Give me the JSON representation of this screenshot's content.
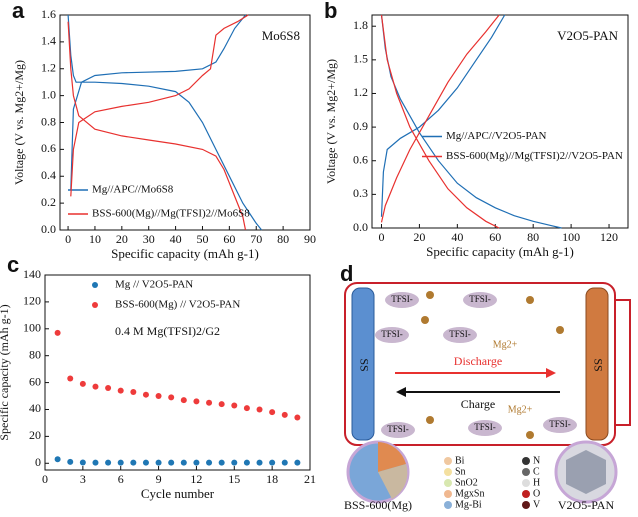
{
  "chart_data": [
    {
      "type": "line",
      "panel_label": "a",
      "title": "Mo6S8",
      "xlabel": "Specific capacity (mAh g-1)",
      "ylabel": "Voltage (V vs. Mg2+/Mg)",
      "xlim": [
        -3,
        90
      ],
      "ylim": [
        0,
        1.6
      ],
      "xticks": [
        0,
        10,
        20,
        30,
        40,
        50,
        60,
        70,
        80,
        90
      ],
      "yticks": [
        {
          "value": 0,
          "label": "0.0"
        },
        {
          "value": 0.2,
          "label": "0.2"
        },
        {
          "value": 0.4,
          "label": "0.4"
        },
        {
          "value": 0.6,
          "label": "0.6"
        },
        {
          "value": 0.8,
          "label": "0.8"
        },
        {
          "value": 1.0,
          "label": "1.0"
        },
        {
          "value": 1.2,
          "label": "1.2"
        },
        {
          "value": 1.4,
          "label": "1.4"
        },
        {
          "value": 1.6,
          "label": "1.6"
        }
      ],
      "legend": "lower left",
      "series": [
        {
          "name": "Mg//APC//Mo6S8",
          "color": "#1f6fb5",
          "x": [
            0,
            1,
            2,
            3,
            10,
            20,
            30,
            40,
            45,
            50,
            55,
            60,
            65,
            70,
            72,
            null,
            1,
            2,
            5,
            10,
            20,
            40,
            50,
            55,
            58,
            62,
            66
          ],
          "values": [
            1.6,
            1.3,
            1.15,
            1.1,
            1.1,
            1.09,
            1.07,
            1.03,
            0.95,
            0.8,
            0.6,
            0.4,
            0.2,
            0.05,
            0,
            null,
            0.3,
            0.9,
            1.1,
            1.15,
            1.17,
            1.18,
            1.2,
            1.25,
            1.35,
            1.5,
            1.6
          ]
        },
        {
          "name": "BSS-600(Mg)//Mg(TFSI)2//Mo6S8",
          "color": "#e8312f",
          "x": [
            0,
            1,
            2,
            4,
            10,
            20,
            30,
            40,
            50,
            55,
            58,
            62,
            65,
            66,
            null,
            1,
            2,
            4,
            10,
            20,
            30,
            40,
            45,
            50,
            53,
            55,
            58,
            63,
            67
          ],
          "values": [
            1.55,
            1.2,
            1.0,
            0.85,
            0.75,
            0.7,
            0.67,
            0.64,
            0.6,
            0.55,
            0.45,
            0.25,
            0.1,
            0,
            null,
            0.25,
            0.6,
            0.8,
            0.88,
            0.92,
            0.95,
            1.0,
            1.05,
            1.15,
            1.2,
            1.45,
            1.5,
            1.55,
            1.6
          ]
        }
      ]
    },
    {
      "type": "line",
      "panel_label": "b",
      "title": "V2O5-PAN",
      "xlabel": "Specific capacity (mAh g-1)",
      "ylabel": "Voltage (V vs. Mg2+/Mg)",
      "xlim": [
        -5,
        130
      ],
      "ylim": [
        0,
        1.9
      ],
      "xticks": [
        0,
        20,
        40,
        60,
        80,
        100,
        120
      ],
      "yticks": [
        {
          "value": 0,
          "label": "0.0"
        },
        {
          "value": 0.3,
          "label": "0.3"
        },
        {
          "value": 0.6,
          "label": "0.6"
        },
        {
          "value": 0.9,
          "label": "0.9"
        },
        {
          "value": 1.2,
          "label": "1.2"
        },
        {
          "value": 1.5,
          "label": "1.5"
        },
        {
          "value": 1.8,
          "label": "1.8"
        }
      ],
      "legend": "center right",
      "series": [
        {
          "name": "Mg//APC//V2O5-PAN",
          "color": "#1f6fb5",
          "x": [
            0,
            2,
            5,
            10,
            20,
            30,
            40,
            50,
            60,
            70,
            80,
            90,
            95,
            null,
            0,
            1,
            3,
            10,
            20,
            30,
            40,
            50,
            58,
            65
          ],
          "values": [
            1.9,
            1.6,
            1.35,
            1.15,
            0.85,
            0.6,
            0.4,
            0.27,
            0.18,
            0.11,
            0.06,
            0.02,
            0,
            null,
            0.1,
            0.5,
            0.7,
            0.8,
            0.9,
            1.05,
            1.25,
            1.5,
            1.7,
            1.9
          ]
        },
        {
          "name": "BSS-600(Mg)//Mg(TFSI)2//V2O5-PAN",
          "color": "#e8312f",
          "x": [
            0,
            3,
            8,
            15,
            25,
            35,
            45,
            55,
            62,
            null,
            0,
            2,
            8,
            15,
            25,
            35,
            45,
            55,
            62
          ],
          "values": [
            1.9,
            1.5,
            1.2,
            0.9,
            0.6,
            0.35,
            0.18,
            0.06,
            0,
            null,
            0.05,
            0.2,
            0.45,
            0.7,
            1.0,
            1.3,
            1.55,
            1.75,
            1.9
          ]
        }
      ]
    },
    {
      "type": "scatter",
      "panel_label": "c",
      "xlabel": "Cycle number",
      "ylabel": "Specific capacity (mAh g-1)",
      "annotation": "0.4 M Mg(TFSI)2/G2",
      "xlim": [
        0,
        21
      ],
      "ylim": [
        -5,
        140
      ],
      "xticks": [
        0,
        3,
        6,
        9,
        12,
        15,
        18,
        21
      ],
      "yticks": [
        0,
        20,
        40,
        60,
        80,
        100,
        120,
        140
      ],
      "legend": "upper left",
      "series": [
        {
          "name": "Mg // V2O5-PAN",
          "color": "#1f77b4",
          "x": [
            1,
            2,
            3,
            4,
            5,
            6,
            7,
            8,
            9,
            10,
            11,
            12,
            13,
            14,
            15,
            16,
            17,
            18,
            19,
            20
          ],
          "values": [
            3,
            1,
            0.6,
            0.5,
            0.5,
            0.5,
            0.5,
            0.5,
            0.5,
            0.5,
            0.5,
            0.5,
            0.5,
            0.5,
            0.5,
            0.5,
            0.5,
            0.5,
            0.5,
            0.5
          ]
        },
        {
          "name": "BSS-600(Mg) // V2O5-PAN",
          "color": "#ee3b3b",
          "x": [
            1,
            2,
            3,
            4,
            5,
            6,
            7,
            8,
            9,
            10,
            11,
            12,
            13,
            14,
            15,
            16,
            17,
            18,
            19,
            20
          ],
          "values": [
            97,
            63,
            59,
            57,
            56,
            54,
            53,
            51,
            50,
            49,
            47,
            46,
            45,
            44,
            43,
            41,
            40,
            38,
            36,
            34
          ]
        }
      ]
    }
  ],
  "diagram": {
    "panel_label": "d",
    "electrode_left": "SS",
    "electrode_right": "SS",
    "anions": [
      "TFSI-",
      "TFSI-",
      "TFSI-",
      "TFSI-",
      "TFSI-",
      "TFSI-",
      "TFSI-"
    ],
    "ion_top": "Mg2+",
    "ion_bottom": "Mg2+",
    "discharge": "Discharge",
    "charge": "Charge",
    "legend_left": [
      "Bi",
      "Sn",
      "SnO2",
      "MgxSn",
      "Mg-Bi"
    ],
    "legend_right": [
      "N",
      "C",
      "H",
      "O",
      "V"
    ],
    "label_left": "BSS-600(Mg)",
    "label_right": "V2O5-PAN"
  }
}
